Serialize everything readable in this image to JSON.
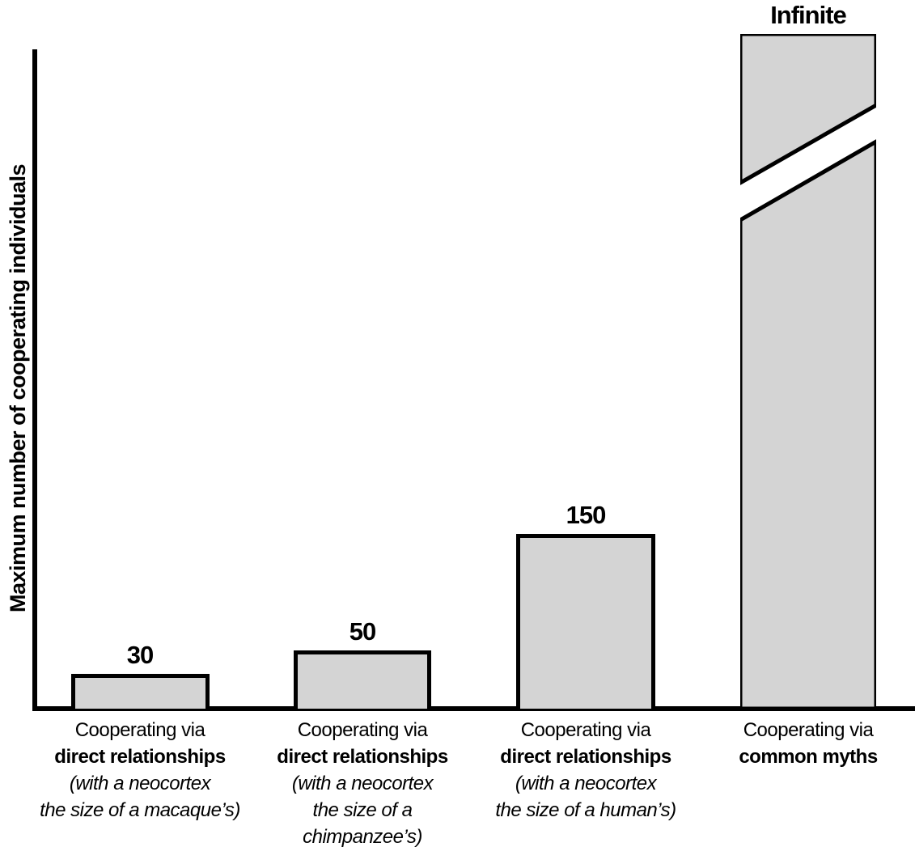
{
  "chart_data": {
    "type": "bar",
    "title": "",
    "xlabel": "",
    "ylabel": "Maximum number of cooperating individuals",
    "grid": false,
    "legend": false,
    "background_color": "#ffffff",
    "bar_fill_color": "#d4d4d4",
    "outline_color": "#000000",
    "y_axis_has_no_tick_labels": true,
    "bars": [
      {
        "value": 30,
        "value_label": "30",
        "broken_bar": false,
        "category_lines": [
          {
            "text": "Cooperating via",
            "style": "normal"
          },
          {
            "text": "direct relationships",
            "style": "bold"
          },
          {
            "text": "(with a neocortex",
            "style": "italic"
          },
          {
            "text": "the size of a macaque’s)",
            "style": "italic"
          }
        ]
      },
      {
        "value": 50,
        "value_label": "50",
        "broken_bar": false,
        "category_lines": [
          {
            "text": "Cooperating via",
            "style": "normal"
          },
          {
            "text": "direct relationships",
            "style": "bold"
          },
          {
            "text": "(with a neocortex",
            "style": "italic"
          },
          {
            "text": "the size of a",
            "style": "italic"
          },
          {
            "text": "chimpanzee’s)",
            "style": "italic"
          }
        ]
      },
      {
        "value": 150,
        "value_label": "150",
        "broken_bar": false,
        "category_lines": [
          {
            "text": "Cooperating via",
            "style": "normal"
          },
          {
            "text": "direct relationships",
            "style": "bold"
          },
          {
            "text": "(with a neocortex",
            "style": "italic"
          },
          {
            "text": "the size of a human’s)",
            "style": "italic"
          }
        ]
      },
      {
        "value": "infinite",
        "value_label": "Infinite",
        "broken_bar": true,
        "category_lines": [
          {
            "text": "Cooperating via",
            "style": "normal"
          },
          {
            "text": "common myths",
            "style": "bold"
          }
        ]
      }
    ]
  }
}
